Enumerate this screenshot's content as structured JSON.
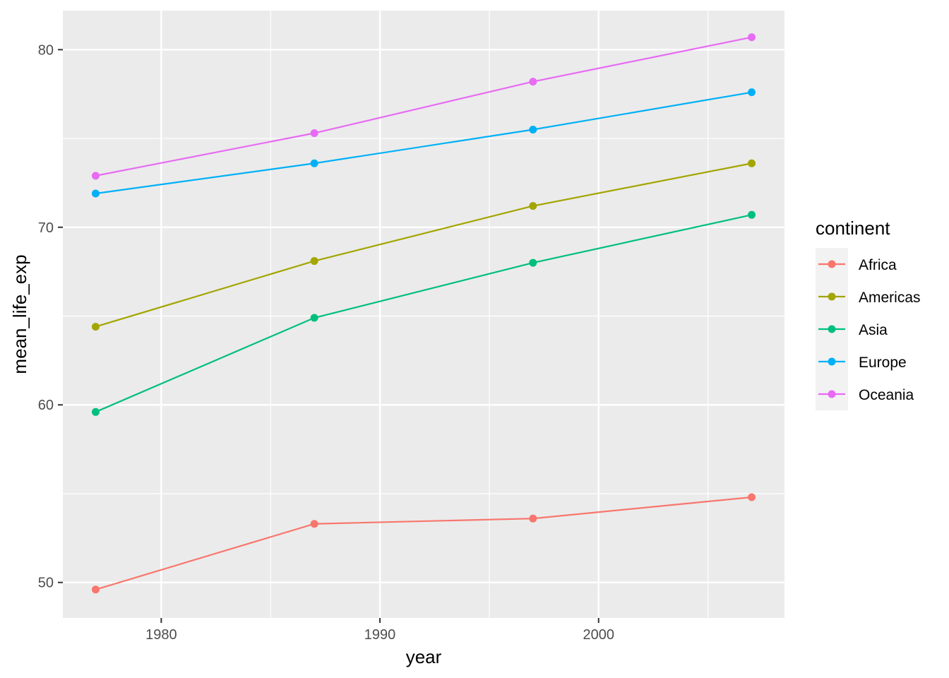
{
  "chart_data": {
    "type": "line",
    "title": "",
    "xlabel": "year",
    "ylabel": "mean_life_exp",
    "x": [
      1977,
      1987,
      1997,
      2007
    ],
    "xlim": [
      1975.5,
      2008.5
    ],
    "ylim": [
      48,
      82.2
    ],
    "xticks": [
      1980,
      1990,
      2000
    ],
    "xtick_labels": [
      "1980",
      "1990",
      "2000"
    ],
    "yticks": [
      50,
      60,
      70,
      80
    ],
    "ytick_labels": [
      "50",
      "60",
      "70",
      "80"
    ],
    "grid": true,
    "legend": {
      "title": "continent",
      "placement": "right"
    },
    "series": [
      {
        "name": "Africa",
        "color": "#F8766D",
        "values": [
          49.6,
          53.3,
          53.6,
          54.8
        ]
      },
      {
        "name": "Americas",
        "color": "#A3A500",
        "values": [
          64.4,
          68.1,
          71.2,
          73.6
        ]
      },
      {
        "name": "Asia",
        "color": "#00BF7D",
        "values": [
          59.6,
          64.9,
          68.0,
          70.7
        ]
      },
      {
        "name": "Europe",
        "color": "#00B0F6",
        "values": [
          71.9,
          73.6,
          75.5,
          77.6
        ]
      },
      {
        "name": "Oceania",
        "color": "#E76BF3",
        "values": [
          72.9,
          75.3,
          78.2,
          80.7
        ]
      }
    ]
  }
}
